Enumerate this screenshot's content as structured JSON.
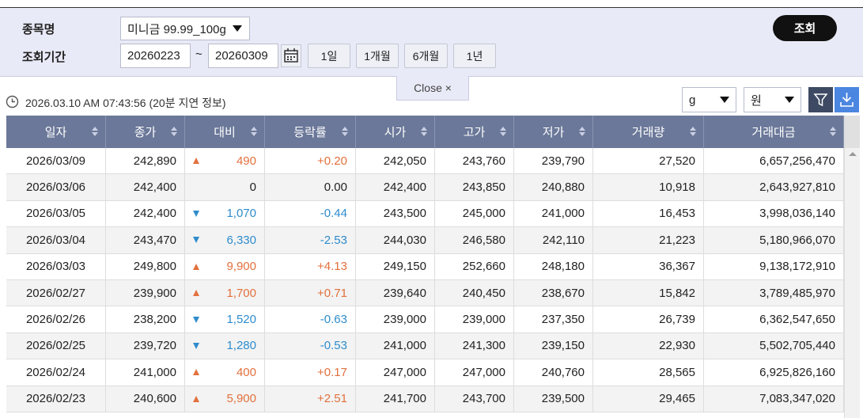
{
  "filter": {
    "item_label": "종목명",
    "item_value": "미니금 99.99_100g",
    "period_label": "조회기간",
    "start_date": "20260223",
    "separator": "~",
    "end_date": "20260309",
    "quick_buttons": [
      "1일",
      "1개월",
      "6개월",
      "1년"
    ],
    "search_button": "조회",
    "close_button": "Close ×"
  },
  "info": {
    "timestamp": "2026.03.10 AM 07:43:56 (20분 지연 정보)",
    "unit_select": "g",
    "currency_select": "원"
  },
  "table": {
    "columns": [
      "일자",
      "종가",
      "대비",
      "등락률",
      "시가",
      "고가",
      "저가",
      "거래량",
      "거래대금"
    ],
    "rows": [
      {
        "direction": "up",
        "cells": [
          "2026/03/09",
          "242,890",
          "490",
          "+0.20",
          "242,050",
          "243,760",
          "239,790",
          "27,520",
          "6,657,256,470"
        ]
      },
      {
        "direction": "none",
        "cells": [
          "2026/03/06",
          "242,400",
          "0",
          "0.00",
          "242,400",
          "243,850",
          "240,880",
          "10,918",
          "2,643,927,810"
        ]
      },
      {
        "direction": "down",
        "cells": [
          "2026/03/05",
          "242,400",
          "1,070",
          "-0.44",
          "243,500",
          "245,000",
          "241,000",
          "16,453",
          "3,998,036,140"
        ]
      },
      {
        "direction": "down",
        "cells": [
          "2026/03/04",
          "243,470",
          "6,330",
          "-2.53",
          "244,030",
          "246,580",
          "242,110",
          "21,223",
          "5,180,966,070"
        ]
      },
      {
        "direction": "up",
        "cells": [
          "2026/03/03",
          "249,800",
          "9,900",
          "+4.13",
          "249,150",
          "252,660",
          "248,180",
          "36,367",
          "9,138,172,910"
        ]
      },
      {
        "direction": "up",
        "cells": [
          "2026/02/27",
          "239,900",
          "1,700",
          "+0.71",
          "239,640",
          "240,450",
          "238,670",
          "15,842",
          "3,789,485,970"
        ]
      },
      {
        "direction": "down",
        "cells": [
          "2026/02/26",
          "238,200",
          "1,520",
          "-0.63",
          "239,000",
          "239,000",
          "237,350",
          "26,739",
          "6,362,547,650"
        ]
      },
      {
        "direction": "down",
        "cells": [
          "2026/02/25",
          "239,720",
          "1,280",
          "-0.53",
          "241,000",
          "241,300",
          "239,150",
          "22,930",
          "5,502,705,440"
        ]
      },
      {
        "direction": "up",
        "cells": [
          "2026/02/24",
          "241,000",
          "400",
          "+0.17",
          "247,000",
          "247,000",
          "240,760",
          "28,565",
          "6,925,826,160"
        ]
      },
      {
        "direction": "up",
        "cells": [
          "2026/02/23",
          "240,600",
          "5,900",
          "+2.51",
          "241,700",
          "243,700",
          "239,500",
          "29,465",
          "7,083,347,020"
        ]
      }
    ]
  }
}
